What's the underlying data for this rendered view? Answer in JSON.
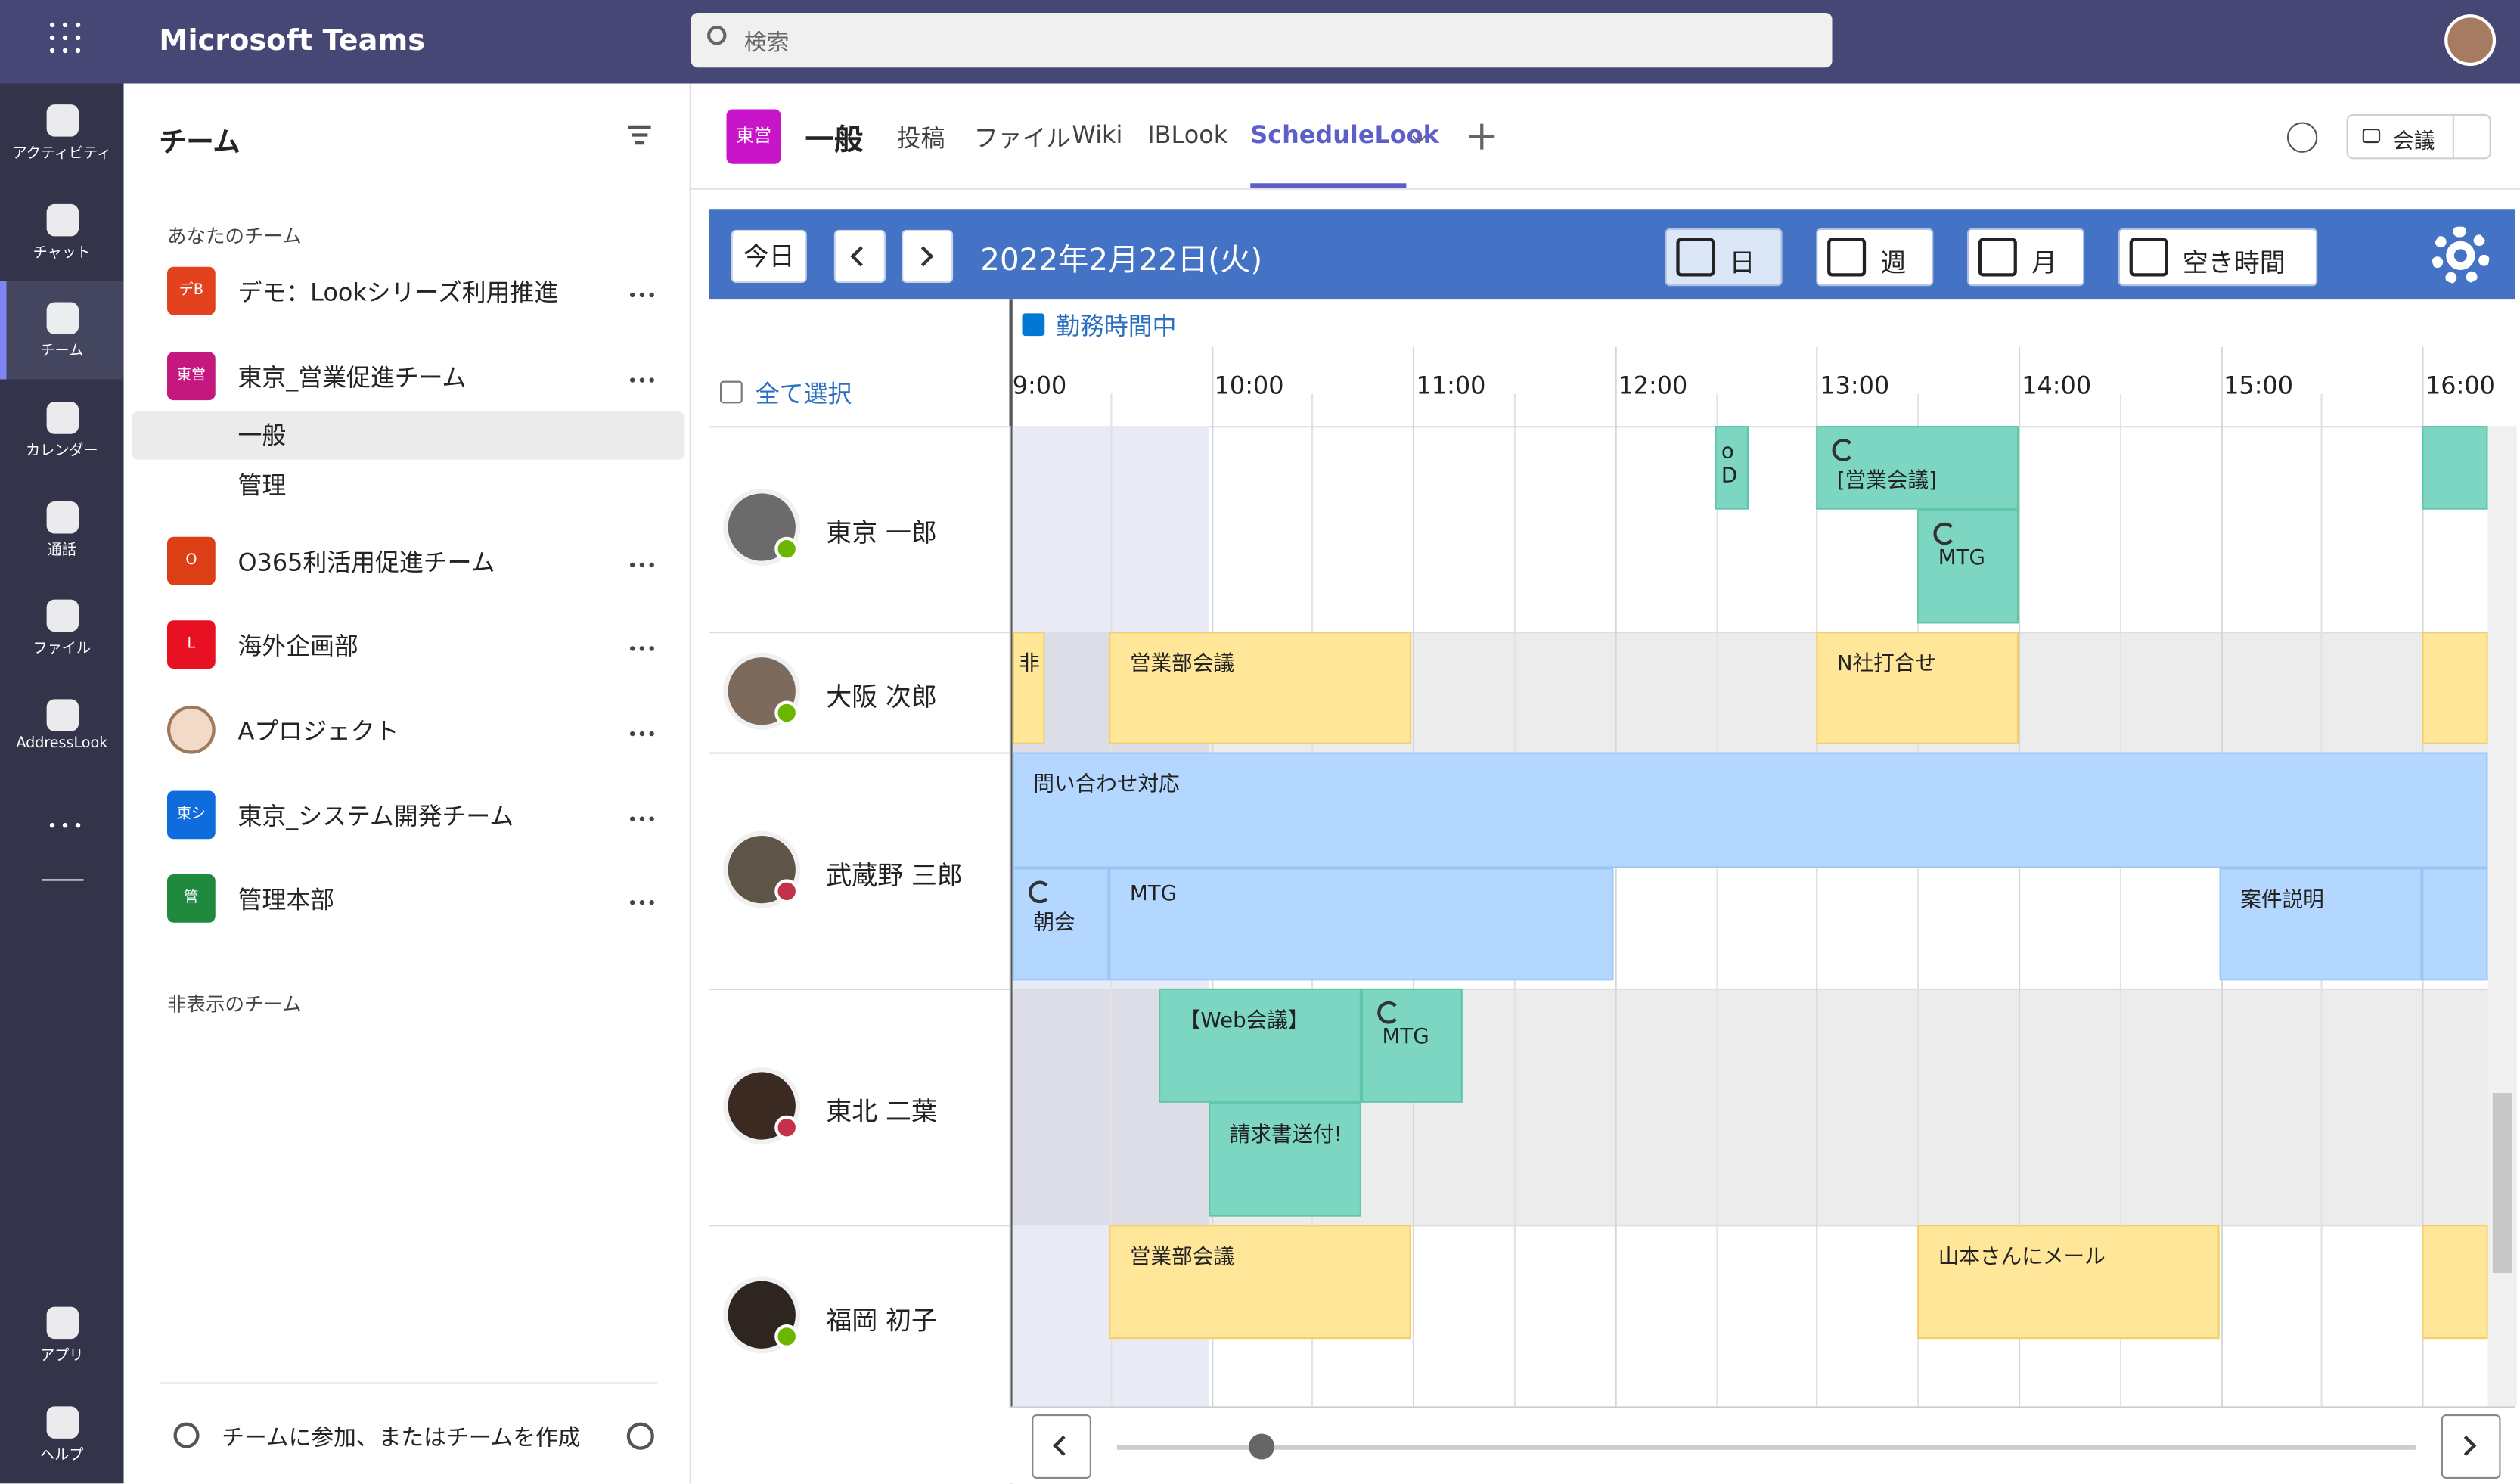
{
  "app_bar": {
    "title": "Microsoft Teams",
    "search": "検索"
  },
  "rail": [
    "アクティビティ",
    "チャット",
    "チーム",
    "カレンダー",
    "通話",
    "ファイル",
    "AddressLook",
    "アプリ",
    "ヘルプ"
  ],
  "sidebar": {
    "title": "チーム",
    "section": "あなたのチーム",
    "teams": [
      {
        "icon": "デB",
        "name": "デモ：Lookシリーズ利用推進"
      },
      {
        "icon": "東営",
        "name": "東京_営業促進チーム",
        "channels": [
          "一般",
          "管理"
        ]
      },
      {
        "icon": "O",
        "name": "O365利活用促進チーム"
      },
      {
        "icon": "L",
        "name": "海外企画部"
      },
      {
        "name": "Aプロジェクト"
      },
      {
        "icon": "東シ",
        "name": "東京_システム開発チーム"
      },
      {
        "icon": "管",
        "name": "管理本部"
      }
    ],
    "hidden_section": "非表示のチーム",
    "footer": "チームに参加、またはチームを作成"
  },
  "channel": {
    "icon": "東営",
    "name": "一般",
    "tabs": [
      "投稿",
      "ファイル",
      "Wiki",
      "IBLook",
      "ScheduleLook"
    ],
    "meet": "会議"
  },
  "schedule": {
    "today": "今日",
    "date": "2022年2月22日(火)",
    "views": [
      "日",
      "週",
      "月",
      "空き時間"
    ],
    "working_hours": "勤務時間中",
    "select_all": "全て選択",
    "times": [
      "9:00",
      "10:00",
      "11:00",
      "12:00",
      "13:00",
      "14:00",
      "15:00",
      "16:00"
    ],
    "people": [
      {
        "name": "東京 一郎",
        "events": [
          "o D",
          "[営業会議]",
          "MTG"
        ]
      },
      {
        "name": "大阪 次郎",
        "events": [
          "非",
          "営業部会議",
          "N社打合せ"
        ]
      },
      {
        "name": "武蔵野 三郎",
        "events": [
          "問い合わせ対応",
          "朝会",
          "MTG",
          "案件説明"
        ]
      },
      {
        "name": "東北 二葉",
        "events": [
          "【Web会議】",
          "MTG",
          "請求書送付!"
        ]
      },
      {
        "name": "福岡 初子",
        "events": [
          "営業部会議",
          "山本さんにメール"
        ]
      }
    ]
  }
}
